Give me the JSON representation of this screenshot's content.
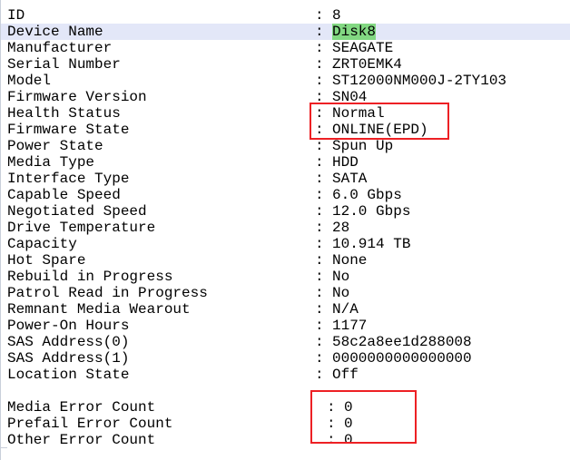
{
  "separator": ":",
  "colors": {
    "background": "#ffffff",
    "text": "#000000",
    "panel-border": "#c9cfda",
    "row-highlight": "#e3e7f8",
    "value-highlight": "#82d882",
    "annotation-red": "#ed2024"
  },
  "rows": [
    {
      "label": "ID",
      "value": "8"
    },
    {
      "label": "Device Name",
      "value": "Disk8"
    },
    {
      "label": "Manufacturer",
      "value": "SEAGATE"
    },
    {
      "label": "Serial Number",
      "value": "ZRT0EMK4"
    },
    {
      "label": "Model",
      "value": "ST12000NM000J-2TY103"
    },
    {
      "label": "Firmware Version",
      "value": "SN04"
    },
    {
      "label": "Health Status",
      "value": "Normal"
    },
    {
      "label": "Firmware State",
      "value": "ONLINE(EPD)"
    },
    {
      "label": "Power State",
      "value": "Spun Up"
    },
    {
      "label": "Media Type",
      "value": "HDD"
    },
    {
      "label": "Interface Type",
      "value": "SATA"
    },
    {
      "label": "Capable Speed",
      "value": "6.0 Gbps"
    },
    {
      "label": "Negotiated Speed",
      "value": "12.0 Gbps"
    },
    {
      "label": "Drive Temperature",
      "value": "28"
    },
    {
      "label": "Capacity",
      "value": "10.914 TB"
    },
    {
      "label": "Hot Spare",
      "value": "None"
    },
    {
      "label": "Rebuild in Progress",
      "value": "No"
    },
    {
      "label": "Patrol Read in Progress",
      "value": "No"
    },
    {
      "label": "Remnant Media Wearout",
      "value": "N/A"
    },
    {
      "label": "Power-On Hours",
      "value": "1177"
    },
    {
      "label": "SAS Address(0)",
      "value": "58c2a8ee1d288008"
    },
    {
      "label": "SAS Address(1)",
      "value": "0000000000000000"
    },
    {
      "label": "Location State",
      "value": "Off"
    },
    {
      "label": "Media Error Count",
      "value": "0"
    },
    {
      "label": "Prefail Error Count",
      "value": "0"
    },
    {
      "label": "Other Error Count",
      "value": "0"
    }
  ]
}
